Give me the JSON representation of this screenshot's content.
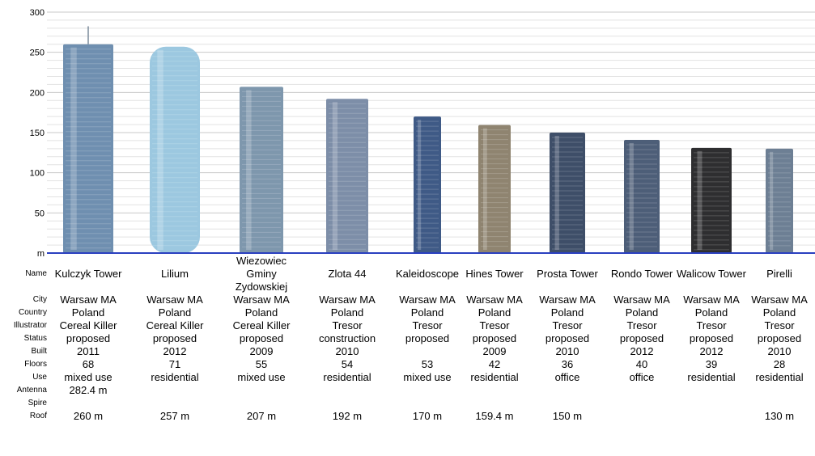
{
  "chart_data": {
    "type": "bar",
    "title": "",
    "xlabel": "",
    "ylabel": "",
    "ylim": [
      0,
      300
    ],
    "y_ticks": [
      "300",
      "250",
      "200",
      "150",
      "100",
      "50",
      "m"
    ],
    "grid": true,
    "row_labels": {
      "name": "Name",
      "city": "City",
      "country": "Country",
      "illustrator": "Illustrator",
      "status": "Status",
      "built": "Built",
      "floors": "Floors",
      "use": "Use",
      "antenna": "Antenna",
      "spire": "Spire",
      "roof": "Roof"
    },
    "buildings": [
      {
        "name": "Kulczyk Tower",
        "city": "Warsaw MA",
        "country": "Poland",
        "illustrator": "Cereal Killer",
        "status": "proposed",
        "built": "2011",
        "floors": "68",
        "use": "mixed use",
        "antenna": "282.4 m",
        "spire": "",
        "roof": "260 m",
        "height": 260,
        "antenna_height": 282.4,
        "color": "#6f8fb0"
      },
      {
        "name": "Lilium",
        "city": "Warsaw MA",
        "country": "Poland",
        "illustrator": "Cereal Killer",
        "status": "proposed",
        "built": "2012",
        "floors": "71",
        "use": "residential",
        "antenna": "",
        "spire": "",
        "roof": "257 m",
        "height": 257,
        "color": "#9cc8e0"
      },
      {
        "name": "Wiezowiec Gminy Zydowskiej",
        "city": "Warsaw MA",
        "country": "Poland",
        "illustrator": "Cereal Killer",
        "status": "proposed",
        "built": "2009",
        "floors": "55",
        "use": "mixed use",
        "antenna": "",
        "spire": "",
        "roof": "207 m",
        "height": 207,
        "color": "#7e97ad"
      },
      {
        "name": "Zlota 44",
        "city": "Warsaw MA",
        "country": "Poland",
        "illustrator": "Tresor",
        "status": "construction",
        "built": "2010",
        "floors": "54",
        "use": "residential",
        "antenna": "",
        "spire": "",
        "roof": "192 m",
        "height": 192,
        "color": "#7d8ea8"
      },
      {
        "name": "Kaleidoscope",
        "city": "Warsaw MA",
        "country": "Poland",
        "illustrator": "Tresor",
        "status": "proposed",
        "built": "",
        "floors": "53",
        "use": "mixed use",
        "antenna": "",
        "spire": "",
        "roof": "170 m",
        "height": 170,
        "color": "#3f5a86"
      },
      {
        "name": "Hines Tower",
        "city": "Warsaw MA",
        "country": "Poland",
        "illustrator": "Tresor",
        "status": "proposed",
        "built": "2009",
        "floors": "42",
        "use": "residential",
        "antenna": "",
        "spire": "",
        "roof": "159.4 m",
        "height": 159.4,
        "color": "#8f8470"
      },
      {
        "name": "Prosta Tower",
        "city": "Warsaw MA",
        "country": "Poland",
        "illustrator": "Tresor",
        "status": "proposed",
        "built": "2010",
        "floors": "36",
        "use": "office",
        "antenna": "",
        "spire": "",
        "roof": "150 m",
        "height": 150,
        "color": "#3e4e68"
      },
      {
        "name": "Rondo Tower",
        "city": "Warsaw MA",
        "country": "Poland",
        "illustrator": "Tresor",
        "status": "proposed",
        "built": "2012",
        "floors": "40",
        "use": "office",
        "antenna": "",
        "spire": "",
        "roof": "",
        "height": 141,
        "color": "#4d5e78"
      },
      {
        "name": "Walicow Tower",
        "city": "Warsaw MA",
        "country": "Poland",
        "illustrator": "Tresor",
        "status": "proposed",
        "built": "2012",
        "floors": "39",
        "use": "residential",
        "antenna": "",
        "spire": "",
        "roof": "",
        "height": 131,
        "color": "#2e2e30"
      },
      {
        "name": "Pirelli",
        "city": "Warsaw MA",
        "country": "Poland",
        "illustrator": "Tresor",
        "status": "proposed",
        "built": "2010",
        "floors": "28",
        "use": "residential",
        "antenna": "",
        "spire": "",
        "roof": "130 m",
        "height": 130,
        "color": "#6d7f94"
      }
    ]
  }
}
